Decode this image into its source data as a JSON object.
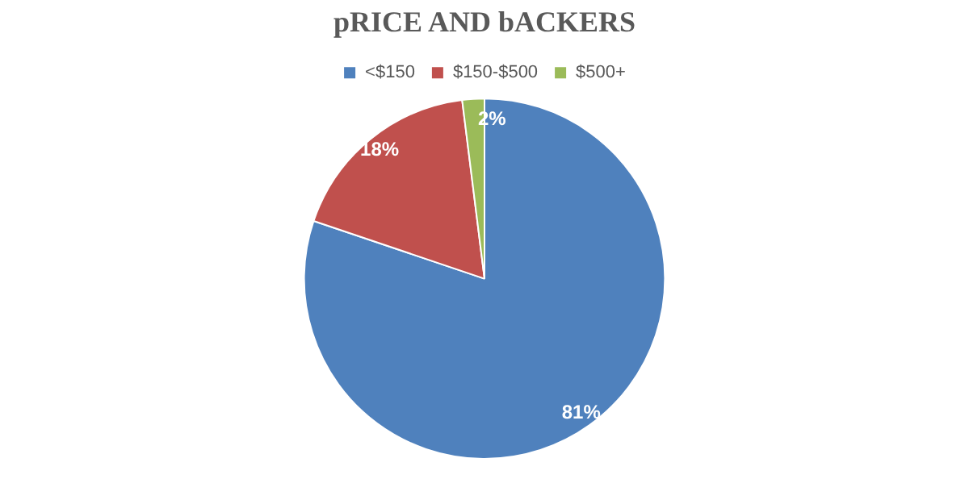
{
  "chart_data": {
    "type": "pie",
    "title": "pRICE AND bACKERS",
    "categories": [
      "<$150",
      "$150-$500",
      "$500+"
    ],
    "values": [
      81,
      18,
      2
    ],
    "colors": [
      "#4f81bd",
      "#c0504d",
      "#9bbb59"
    ],
    "value_labels": [
      "81%",
      "18%",
      "2%"
    ],
    "legend": "top"
  }
}
